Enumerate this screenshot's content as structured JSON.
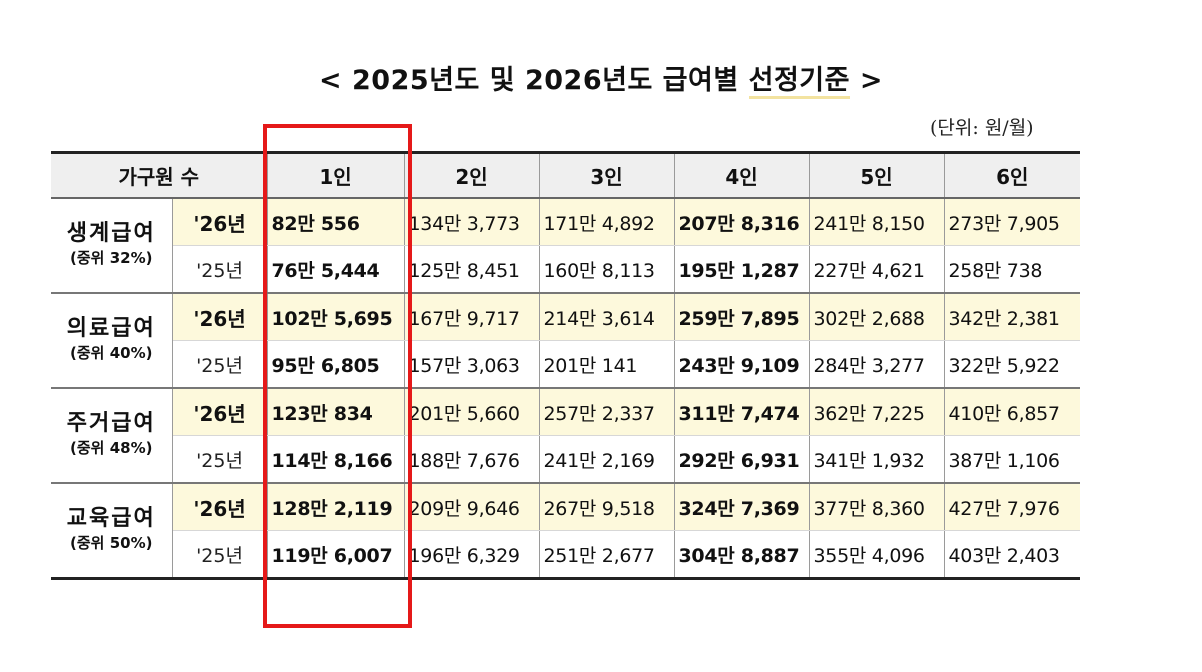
{
  "title": {
    "prefix": "< 2025년도 및 2026년도 급여별 ",
    "highlight": "선정기준",
    "suffix": " >"
  },
  "unit": "(단위: 원/월)",
  "header": [
    "가구원 수",
    "1인",
    "2인",
    "3인",
    "4인",
    "5인",
    "6인"
  ],
  "rows": [
    {
      "name": "생계급여",
      "sub": "(중위 32%)",
      "y26": {
        "label": "'26년",
        "values": [
          "82만 556",
          "134만 3,773",
          "171만 4,892",
          "207만 8,316",
          "241만 8,150",
          "273만 7,905"
        ]
      },
      "y25": {
        "label": "'25년",
        "values": [
          "76만 5,444",
          "125만 8,451",
          "160만 8,113",
          "195만 1,287",
          "227만 4,621",
          "258만 738"
        ]
      }
    },
    {
      "name": "의료급여",
      "sub": "(중위 40%)",
      "y26": {
        "label": "'26년",
        "values": [
          "102만 5,695",
          "167만 9,717",
          "214만 3,614",
          "259만 7,895",
          "302만 2,688",
          "342만 2,381"
        ]
      },
      "y25": {
        "label": "'25년",
        "values": [
          "95만 6,805",
          "157만 3,063",
          "201만 141",
          "243만 9,109",
          "284만 3,277",
          "322만 5,922"
        ]
      }
    },
    {
      "name": "주거급여",
      "sub": "(중위 48%)",
      "y26": {
        "label": "'26년",
        "values": [
          "123만 834",
          "201만 5,660",
          "257만 2,337",
          "311만 7,474",
          "362만 7,225",
          "410만 6,857"
        ]
      },
      "y25": {
        "label": "'25년",
        "values": [
          "114만 8,166",
          "188만 7,676",
          "241만 2,169",
          "292만 6,931",
          "341만 1,932",
          "387만 1,106"
        ]
      }
    },
    {
      "name": "교육급여",
      "sub": "(중위 50%)",
      "y26": {
        "label": "'26년",
        "values": [
          "128만 2,119",
          "209만 9,646",
          "267만 9,518",
          "324만 7,369",
          "377만 8,360",
          "427만 7,976"
        ]
      },
      "y25": {
        "label": "'25년",
        "values": [
          "119만 6,007",
          "196만 6,329",
          "251만 2,677",
          "304만 8,887",
          "355만 4,096",
          "403만 2,403"
        ]
      }
    }
  ],
  "colors": {
    "highlight_bg": "#fdf9dc",
    "header_bg": "#efefef",
    "red_box": "#e51919"
  }
}
